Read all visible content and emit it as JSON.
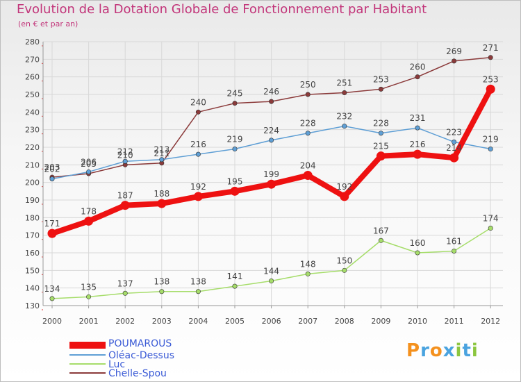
{
  "chart_data": {
    "type": "line",
    "title": "Evolution de la Dotation Globale de Fonctionnement par Habitant",
    "subtitle": "(en € et par an)",
    "x": [
      "2000",
      "2001",
      "2002",
      "2003",
      "2004",
      "2005",
      "2006",
      "2007",
      "2008",
      "2009",
      "2010",
      "2011",
      "2012"
    ],
    "ylim": [
      130,
      280
    ],
    "yticks": [
      130,
      140,
      150,
      160,
      170,
      180,
      190,
      200,
      210,
      220,
      230,
      240,
      250,
      260,
      270,
      280
    ],
    "grid": true,
    "legend_position": "bottom-left",
    "series": [
      {
        "name": "POUMAROUS",
        "color": "#ee1111",
        "values": [
          171,
          178,
          187,
          188,
          192,
          195,
          199,
          204,
          192,
          215,
          216,
          214,
          253
        ],
        "labels": [
          "171",
          "178",
          "187",
          "188",
          "192",
          "195",
          "199",
          "204",
          "192",
          "215",
          "216",
          "214",
          "253"
        ]
      },
      {
        "name": "Oléac-Dessus",
        "color": "#5f9fd5",
        "values": [
          202,
          206,
          212,
          213,
          216,
          219,
          224,
          228,
          232,
          228,
          231,
          223,
          219
        ],
        "labels": [
          "202",
          "206",
          "212",
          "213",
          "216",
          "219",
          "224",
          "228",
          "232",
          "228",
          "231",
          "223",
          "219"
        ]
      },
      {
        "name": "Luc",
        "color": "#a6dd6a",
        "values": [
          134,
          135,
          137,
          138,
          138,
          141,
          144,
          148,
          150,
          167,
          160,
          161,
          174
        ],
        "labels": [
          "134",
          "135",
          "137",
          "138",
          "138",
          "141",
          "144",
          "148",
          "150",
          "167",
          "160",
          "161",
          "174"
        ]
      },
      {
        "name": "Chelle-Spou",
        "color": "#8b3a3a",
        "values": [
          203,
          205,
          210,
          211,
          240,
          245,
          246,
          250,
          251,
          253,
          260,
          269,
          271
        ],
        "labels": [
          "203",
          "205",
          "210",
          "211",
          "240",
          "245",
          "246",
          "250",
          "251",
          "253",
          "260",
          "269",
          "271"
        ]
      }
    ]
  },
  "logo": {
    "text": "Proxiti",
    "letters": [
      "P",
      "r",
      "o",
      "x",
      "i",
      "t",
      "i"
    ]
  }
}
